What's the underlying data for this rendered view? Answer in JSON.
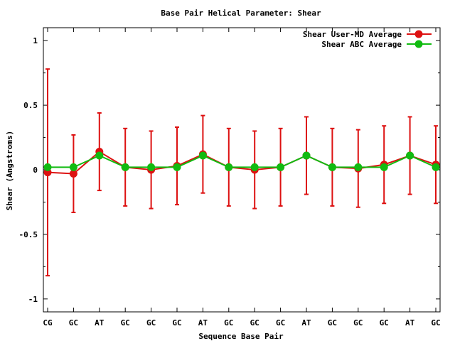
{
  "chart_data": {
    "type": "line",
    "title": "Base Pair Helical Parameter: Shear",
    "xlabel": "Sequence Base Pair",
    "ylabel": "Shear (Angstroms)",
    "categories": [
      "CG",
      "GC",
      "AT",
      "GC",
      "GC",
      "GC",
      "AT",
      "GC",
      "GC",
      "GC",
      "AT",
      "GC",
      "GC",
      "GC",
      "AT",
      "GC"
    ],
    "ylim": [
      -1.1,
      1.1
    ],
    "yticks": [
      -1,
      -0.5,
      0,
      0.5,
      1
    ],
    "ytick_labels": [
      "-1",
      "-0.5",
      "0",
      "0.5",
      "1"
    ],
    "grid": false,
    "legend_position": "top-right",
    "series": [
      {
        "name": "Shear User-MD Average",
        "color": "#dd1111",
        "values": [
          -0.02,
          -0.03,
          0.14,
          0.02,
          0.0,
          0.03,
          0.12,
          0.02,
          0.0,
          0.02,
          0.11,
          0.02,
          0.01,
          0.04,
          0.11,
          0.04
        ],
        "error": [
          0.8,
          0.3,
          0.3,
          0.3,
          0.3,
          0.3,
          0.3,
          0.3,
          0.3,
          0.3,
          0.3,
          0.3,
          0.3,
          0.3,
          0.3,
          0.3
        ]
      },
      {
        "name": "Shear ABC Average",
        "color": "#11bb11",
        "values": [
          0.02,
          0.02,
          0.11,
          0.02,
          0.02,
          0.02,
          0.11,
          0.02,
          0.02,
          0.02,
          0.11,
          0.02,
          0.02,
          0.02,
          0.11,
          0.02
        ]
      }
    ]
  }
}
